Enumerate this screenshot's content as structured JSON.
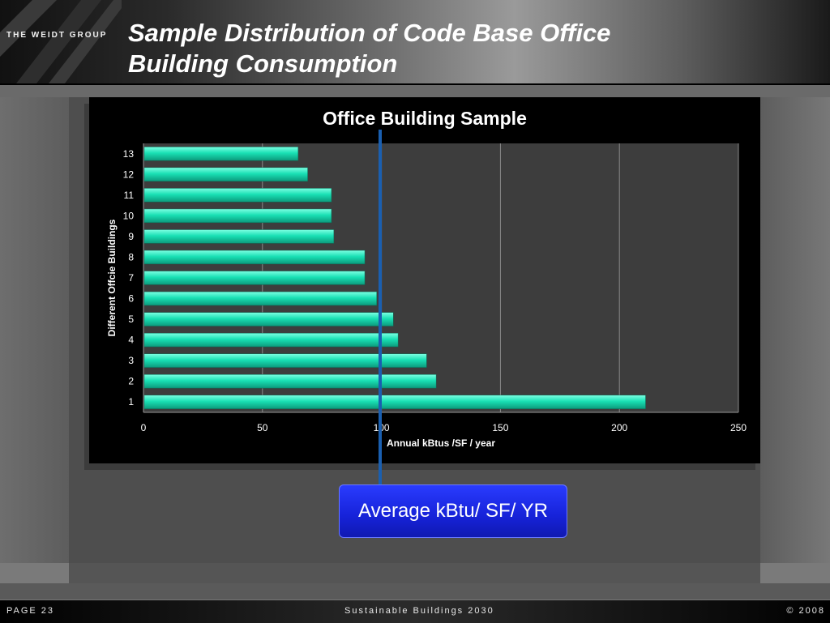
{
  "header": {
    "logo_text": "THE WEIDT GROUP",
    "title": "Sample Distribution of Code Base Office Building Consumption"
  },
  "callout": {
    "label": "Average kBtu/ SF/ YR"
  },
  "footer": {
    "page": "PAGE 23",
    "series": "Sustainable Buildings 2030",
    "copyright": "© 2008"
  },
  "colors": {
    "bar": "#19e0b4",
    "plot_bg": "#3d3d3d",
    "avg_line": "#1a5fb0",
    "callout": "#1a22e0"
  },
  "chart_data": {
    "type": "bar",
    "orientation": "horizontal",
    "title": "Office Building Sample",
    "xlabel": "Annual kBtus /SF / year",
    "ylabel": "Different Offcie Buildings",
    "categories": [
      "1",
      "2",
      "3",
      "4",
      "5",
      "6",
      "7",
      "8",
      "9",
      "10",
      "11",
      "12",
      "13"
    ],
    "values": [
      211,
      123,
      119,
      107,
      105,
      98,
      93,
      93,
      80,
      79,
      79,
      69,
      65
    ],
    "xlim": [
      0,
      250
    ],
    "xticks": [
      0,
      50,
      100,
      150,
      200,
      250
    ],
    "grid": true,
    "legend": "none",
    "average_marker": 99
  }
}
